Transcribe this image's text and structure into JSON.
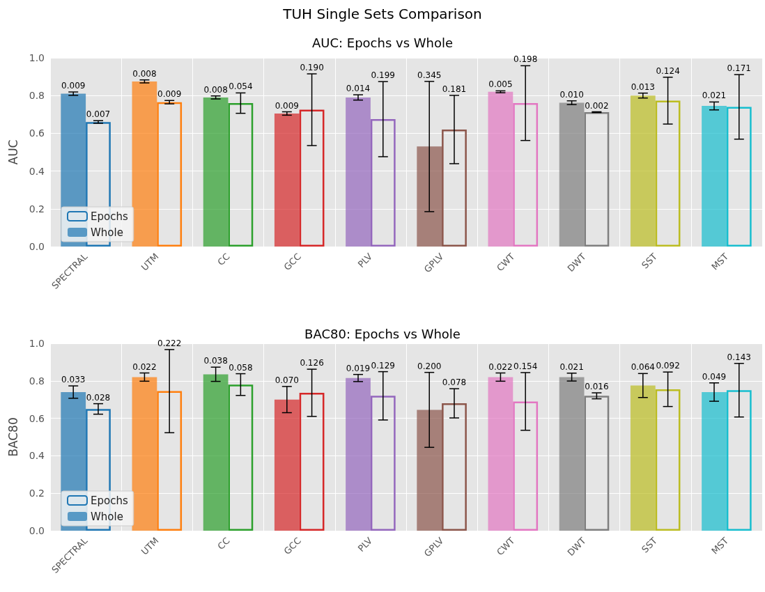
{
  "chart_data": [
    {
      "type": "bar",
      "title": "TUH Single Sets Comparison",
      "subtitle": "AUC: Epochs vs Whole",
      "ylabel": "AUC",
      "categories": [
        "SPECTRAL",
        "UTM",
        "CC",
        "GCC",
        "PLV",
        "GPLV",
        "CWT",
        "DWT",
        "SST",
        "MST"
      ],
      "series": [
        {
          "name": "Epochs",
          "colors": [
            "#1f77b4",
            "#ff7f0e",
            "#2ca02c",
            "#d62728",
            "#9467bd",
            "#8c564b",
            "#e377c2",
            "#7f7f7f",
            "#bcbd22",
            "#17becf"
          ],
          "values": [
            0.66,
            0.765,
            0.76,
            0.725,
            0.675,
            0.62,
            0.76,
            0.712,
            0.773,
            0.74
          ],
          "errors": [
            0.007,
            0.009,
            0.054,
            0.19,
            0.199,
            0.181,
            0.198,
            0.002,
            0.124,
            0.171
          ]
        },
        {
          "name": "Whole",
          "colors": [
            "#1f77b4",
            "#ff7f0e",
            "#2ca02c",
            "#d62728",
            "#9467bd",
            "#8c564b",
            "#e377c2",
            "#7f7f7f",
            "#bcbd22",
            "#17becf"
          ],
          "values": [
            0.81,
            0.875,
            0.79,
            0.705,
            0.79,
            0.53,
            0.82,
            0.762,
            0.8,
            0.745
          ],
          "errors": [
            0.009,
            0.008,
            0.008,
            0.009,
            0.014,
            0.345,
            0.005,
            0.01,
            0.013,
            0.021
          ]
        }
      ],
      "annotations": [
        "0.007",
        "0.009",
        "0.054",
        "0.190",
        "0.199",
        "0.181",
        "0.198",
        "0.002",
        "0.124",
        "0.171",
        "0.009",
        "0.008",
        "0.008",
        "0.009",
        "0.014",
        "0.345",
        "0.005",
        "0.010",
        "0.013",
        "0.021"
      ],
      "ylim": [
        0,
        1
      ],
      "yticks": [
        {
          "value": 0,
          "label": "0.0"
        },
        {
          "value": 0.2,
          "label": "0.2"
        },
        {
          "value": 0.4,
          "label": "0.4"
        },
        {
          "value": 0.6,
          "label": "0.6"
        },
        {
          "value": 0.8,
          "label": "0.8"
        },
        {
          "value": 1,
          "label": "1.0"
        }
      ],
      "grid": true,
      "legend": "bottom left"
    },
    {
      "type": "bar",
      "title": "BAC80: Epochs vs Whole",
      "ylabel": "BAC80",
      "categories": [
        "SPECTRAL",
        "UTM",
        "CC",
        "GCC",
        "PLV",
        "GPLV",
        "CWT",
        "DWT",
        "SST",
        "MST"
      ],
      "series": [
        {
          "name": "Epochs",
          "colors": [
            "#1f77b4",
            "#ff7f0e",
            "#2ca02c",
            "#d62728",
            "#9467bd",
            "#8c564b",
            "#e377c2",
            "#7f7f7f",
            "#bcbd22",
            "#17becf"
          ],
          "values": [
            0.65,
            0.745,
            0.78,
            0.736,
            0.72,
            0.68,
            0.69,
            0.72,
            0.755,
            0.75
          ],
          "errors": [
            0.028,
            0.222,
            0.058,
            0.126,
            0.129,
            0.078,
            0.154,
            0.016,
            0.092,
            0.143
          ]
        },
        {
          "name": "Whole",
          "colors": [
            "#1f77b4",
            "#ff7f0e",
            "#2ca02c",
            "#d62728",
            "#9467bd",
            "#8c564b",
            "#e377c2",
            "#7f7f7f",
            "#bcbd22",
            "#17becf"
          ],
          "values": [
            0.74,
            0.82,
            0.835,
            0.7,
            0.815,
            0.645,
            0.82,
            0.82,
            0.775,
            0.74
          ],
          "errors": [
            0.033,
            0.022,
            0.038,
            0.07,
            0.019,
            0.2,
            0.022,
            0.021,
            0.064,
            0.049
          ]
        }
      ],
      "annotations": [
        "0.028",
        "0.222",
        "0.058",
        "0.126",
        "0.129",
        "0.078",
        "0.154",
        "0.016",
        "0.092",
        "0.143",
        "0.033",
        "0.022",
        "0.038",
        "0.070",
        "0.019",
        "0.200",
        "0.022",
        "0.021",
        "0.064",
        "0.049"
      ],
      "ylim": [
        0,
        1
      ],
      "yticks": [
        {
          "value": 0,
          "label": "0.0"
        },
        {
          "value": 0.2,
          "label": "0.2"
        },
        {
          "value": 0.4,
          "label": "0.4"
        },
        {
          "value": 0.6,
          "label": "0.6"
        },
        {
          "value": 0.8,
          "label": "0.8"
        },
        {
          "value": 1,
          "label": "1.0"
        }
      ],
      "grid": true,
      "legend": "bottom left"
    }
  ]
}
